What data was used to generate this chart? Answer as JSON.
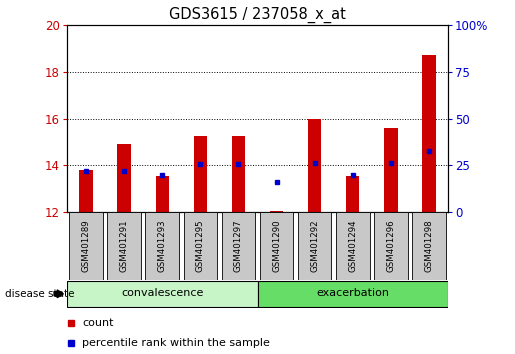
{
  "title": "GDS3615 / 237058_x_at",
  "samples": [
    "GSM401289",
    "GSM401291",
    "GSM401293",
    "GSM401295",
    "GSM401297",
    "GSM401290",
    "GSM401292",
    "GSM401294",
    "GSM401296",
    "GSM401298"
  ],
  "red_values": [
    13.8,
    14.9,
    13.55,
    15.25,
    15.25,
    12.05,
    16.0,
    13.55,
    15.6,
    18.7
  ],
  "blue_values": [
    13.75,
    13.75,
    13.6,
    14.05,
    14.05,
    13.3,
    14.1,
    13.6,
    14.1,
    14.6
  ],
  "ylim_left": [
    12,
    20
  ],
  "ylim_right": [
    0,
    100
  ],
  "yticks_left": [
    12,
    14,
    16,
    18,
    20
  ],
  "yticks_right": [
    0,
    25,
    50,
    75,
    100
  ],
  "groups": [
    {
      "label": "convalescence",
      "start": 0,
      "end": 5
    },
    {
      "label": "exacerbation",
      "start": 5,
      "end": 10
    }
  ],
  "convalescence_color": "#c8f5c8",
  "exacerbation_color": "#66dd66",
  "bar_color": "#CC0000",
  "dot_color": "#0000CC",
  "grid_color": "#000000",
  "bar_width": 0.35,
  "ylabel_left_color": "#CC0000",
  "ylabel_right_color": "#0000CC",
  "legend_labels": [
    "count",
    "percentile rank within the sample"
  ],
  "disease_state_label": "disease state",
  "background_color": "#ffffff",
  "tick_bg_color": "#c8c8c8",
  "grid_yticks": [
    14,
    16,
    18
  ]
}
